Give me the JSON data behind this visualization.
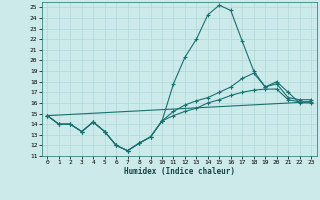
{
  "xlabel": "Humidex (Indice chaleur)",
  "background_color": "#cceaea",
  "grid_color": "#b0d8d8",
  "line_color": "#1a7070",
  "xlim": [
    -0.5,
    23.5
  ],
  "ylim": [
    11,
    25.5
  ],
  "yticks": [
    11,
    12,
    13,
    14,
    15,
    16,
    17,
    18,
    19,
    20,
    21,
    22,
    23,
    24,
    25
  ],
  "xticks": [
    0,
    1,
    2,
    3,
    4,
    5,
    6,
    7,
    8,
    9,
    10,
    11,
    12,
    13,
    14,
    15,
    16,
    17,
    18,
    19,
    20,
    21,
    22,
    23
  ],
  "line1_x": [
    0,
    1,
    2,
    3,
    4,
    5,
    6,
    7,
    8,
    9,
    10,
    11,
    12,
    13,
    14,
    15,
    16,
    17,
    18,
    19,
    20,
    21,
    22,
    23
  ],
  "line1_y": [
    14.8,
    14.0,
    14.0,
    13.3,
    14.2,
    13.3,
    12.0,
    11.5,
    12.2,
    12.8,
    14.3,
    17.8,
    20.3,
    22.0,
    24.3,
    25.2,
    24.7,
    21.8,
    19.0,
    17.5,
    18.0,
    17.0,
    16.0,
    16.0
  ],
  "line2_x": [
    0,
    1,
    2,
    3,
    4,
    5,
    6,
    7,
    8,
    9,
    10,
    11,
    12,
    13,
    14,
    15,
    16,
    17,
    18,
    19,
    20,
    21,
    22,
    23
  ],
  "line2_y": [
    14.8,
    14.0,
    14.0,
    13.3,
    14.2,
    13.3,
    12.0,
    11.5,
    12.2,
    12.8,
    14.3,
    15.2,
    15.8,
    16.2,
    16.5,
    17.0,
    17.5,
    18.3,
    18.8,
    17.5,
    17.8,
    16.5,
    16.3,
    16.3
  ],
  "line3_x": [
    0,
    1,
    2,
    3,
    4,
    5,
    6,
    7,
    8,
    9,
    10,
    11,
    12,
    13,
    14,
    15,
    16,
    17,
    18,
    19,
    20,
    21,
    22,
    23
  ],
  "line3_y": [
    14.8,
    14.0,
    14.0,
    13.3,
    14.2,
    13.3,
    12.0,
    11.5,
    12.2,
    12.8,
    14.3,
    14.8,
    15.2,
    15.5,
    16.0,
    16.3,
    16.7,
    17.0,
    17.2,
    17.3,
    17.3,
    16.3,
    16.1,
    16.1
  ],
  "line4_x": [
    0,
    23
  ],
  "line4_y": [
    14.8,
    16.1
  ]
}
